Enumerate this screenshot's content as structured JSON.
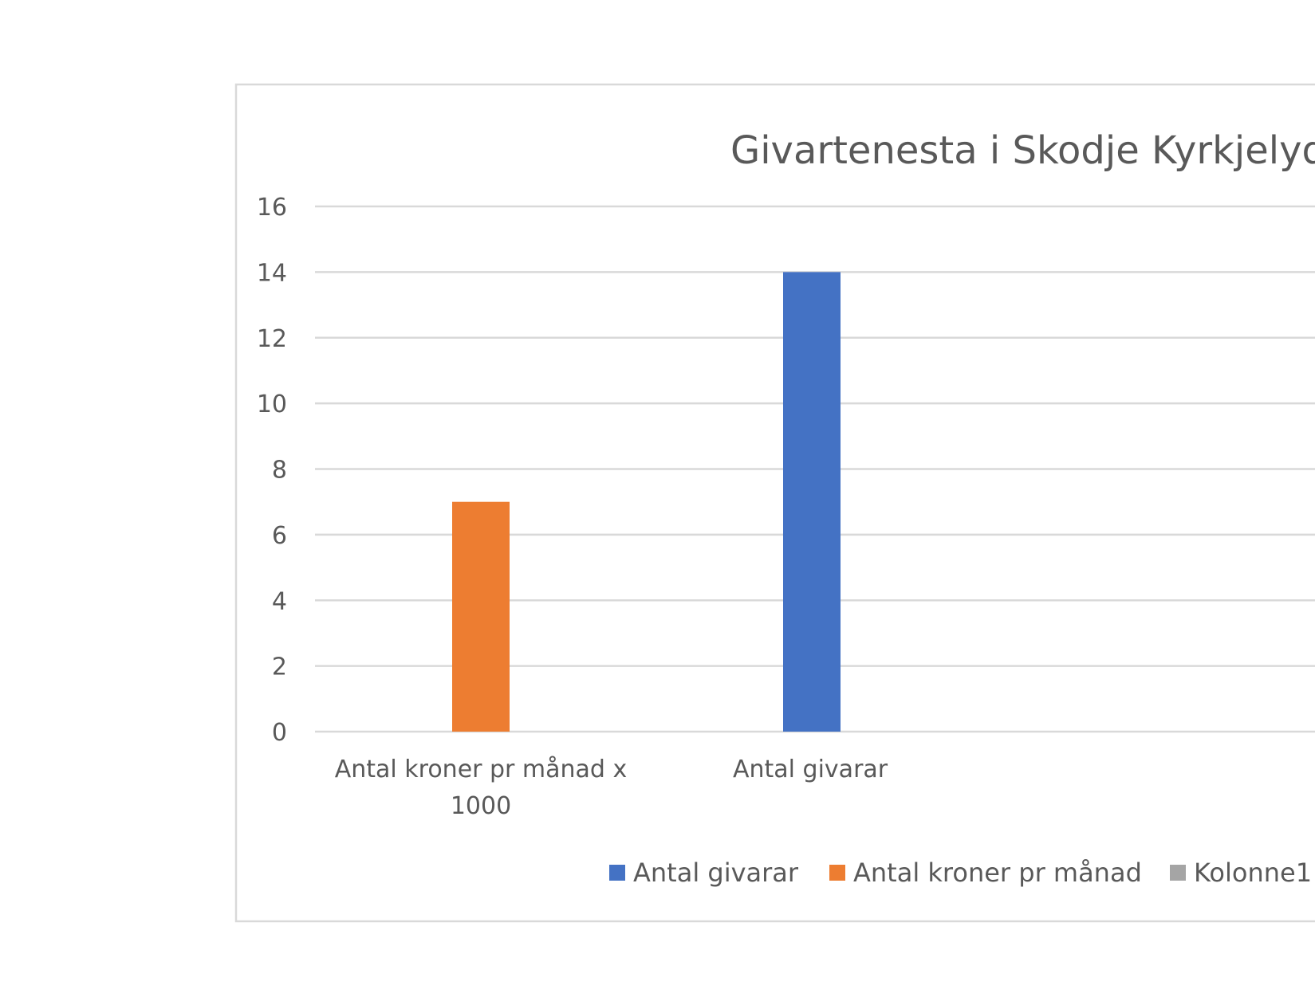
{
  "chart_data": {
    "type": "bar",
    "title": "Givartenesta i Skodje Kyrkjelyd",
    "xlabel": "",
    "ylabel": "",
    "ylim": [
      0,
      16
    ],
    "yticks": [
      0,
      2,
      4,
      6,
      8,
      10,
      12,
      14,
      16
    ],
    "grid": true,
    "legend_position": "bottom",
    "categories": [
      "Antal kroner pr månad x 1000",
      "Antal givarar"
    ],
    "category_lines": [
      [
        "Antal kroner pr månad x",
        "1000"
      ],
      [
        "Antal givarar"
      ]
    ],
    "series": [
      {
        "name": "Antal givarar",
        "color": "#4472c4",
        "values": [
          null,
          14
        ]
      },
      {
        "name": "Antal kroner pr månad",
        "color": "#ed7d31",
        "values": [
          7,
          null
        ]
      },
      {
        "name": "Kolonne1",
        "color": "#a5a5a5",
        "values": [
          null,
          null
        ]
      }
    ]
  }
}
